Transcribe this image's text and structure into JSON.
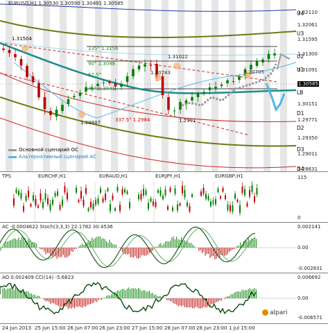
{
  "main_chart": {
    "header": "EURUSD,H1  1.30530 1.30590 1.30491 1.30585",
    "price_axis": [
      "1.32110",
      "1.32061",
      "1.31595",
      "1.31300",
      "1.31091",
      "1.30585",
      "1.30151",
      "1.29771",
      "1.29350",
      "1.29011",
      "1.28631"
    ],
    "levels": [
      "U4",
      "U3",
      "U2",
      "U1",
      "LB",
      "D1",
      "D2",
      "D3",
      "D4"
    ],
    "annotations": {
      "p1": "1.31504",
      "p2": "1.31022",
      "p3": "1.30743",
      "p4": "1.30705",
      "p5": "1.29847",
      "p6": "1.2991",
      "fib135": "135° 1.3156",
      "fib90": "90° 1.3098",
      "fib67": "67.5°",
      "fib45": "45° 1.3041",
      "fib337": "337.5° 1.2984"
    },
    "current_price": "1.30585",
    "legend": {
      "primary": "Основной сценарий ОС",
      "alternative": "Альтернативный сценарий АС"
    }
  },
  "tps_panel": {
    "label": "TPS",
    "pairs": [
      "EURCHF,H1",
      "EURAUD,H1",
      "EURJPY,H1",
      "EURGBP,H1"
    ],
    "axis": [
      "115",
      "0"
    ]
  },
  "ac_panel": {
    "label": "AC -0.0004622  Stoch(3,3,3) 22.1782 30.4536",
    "axis": [
      "0.002141",
      "0.00",
      "-0.002831"
    ]
  },
  "ao_panel": {
    "label": "AO 0.002409  CCI(14) -5.6823",
    "axis": [
      "0.006692",
      "0.00",
      "-0.006571"
    ]
  },
  "time_axis": [
    "24 Jun 2013",
    "25 Jun 15:00",
    "26 Jun 07:00",
    "26 Jun 23:00",
    "27 Jun 15:00",
    "28 Jun 07:00",
    "28 Jun 23:00",
    "1 Jul 15:00"
  ],
  "brand": "alpari",
  "colors": {
    "primary_scenario": "#9a9a9a",
    "alternative_scenario": "#4fb8e8",
    "bull": "#008000",
    "bear": "#c00000"
  }
}
